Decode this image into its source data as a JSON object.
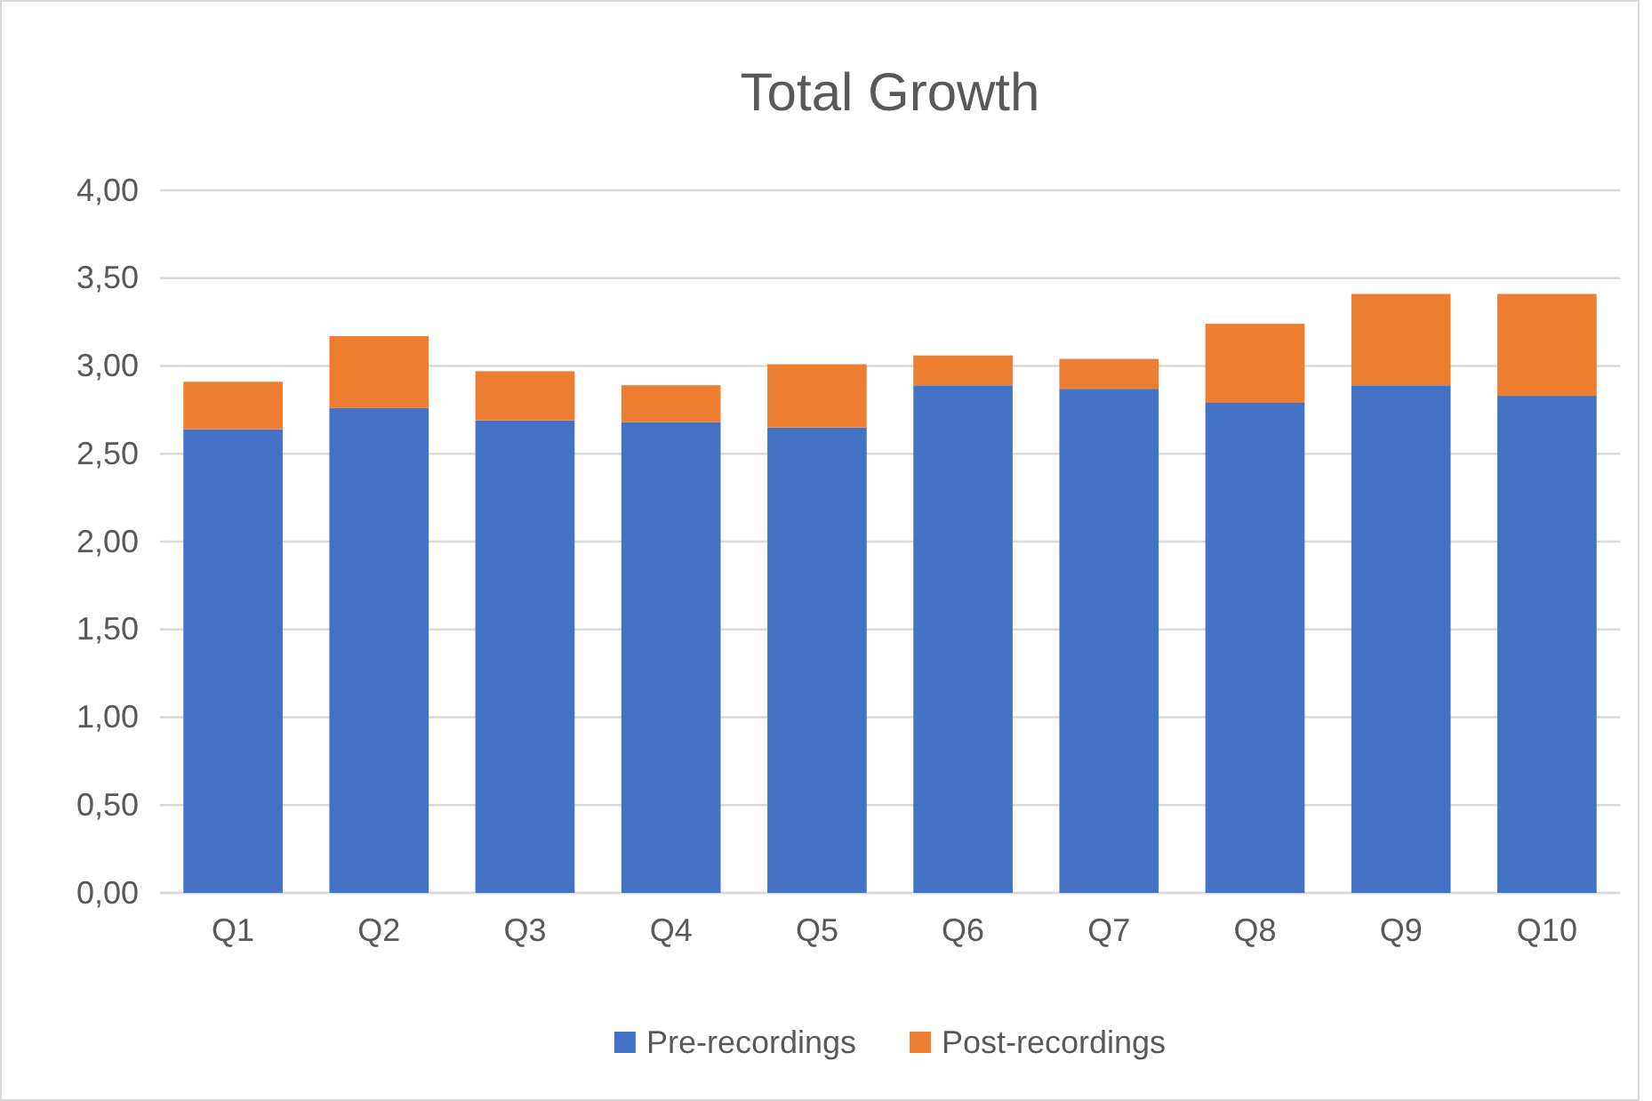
{
  "chart_data": {
    "type": "bar",
    "title": "Total Growth",
    "stacked": true,
    "categories": [
      "Q1",
      "Q2",
      "Q3",
      "Q4",
      "Q5",
      "Q6",
      "Q7",
      "Q8",
      "Q9",
      "Q10"
    ],
    "series": [
      {
        "name": "Pre-recordings",
        "color": "#4472c4",
        "values": [
          2.64,
          2.76,
          2.69,
          2.68,
          2.65,
          2.89,
          2.87,
          2.79,
          2.89,
          2.83
        ]
      },
      {
        "name": "Post-recordings",
        "color": "#ed7d31",
        "values": [
          0.27,
          0.41,
          0.28,
          0.21,
          0.36,
          0.17,
          0.17,
          0.45,
          0.52,
          0.58
        ]
      }
    ],
    "ylim": [
      0,
      4
    ],
    "yticks": [
      {
        "value": 0,
        "label": "0,00"
      },
      {
        "value": 0.5,
        "label": "0,50"
      },
      {
        "value": 1,
        "label": "1,00"
      },
      {
        "value": 1.5,
        "label": "1,50"
      },
      {
        "value": 2,
        "label": "2,00"
      },
      {
        "value": 2.5,
        "label": "2,50"
      },
      {
        "value": 3,
        "label": "3,00"
      },
      {
        "value": 3.5,
        "label": "3,50"
      },
      {
        "value": 4,
        "label": "4,00"
      }
    ],
    "grid": "y",
    "legend": "bottom"
  }
}
